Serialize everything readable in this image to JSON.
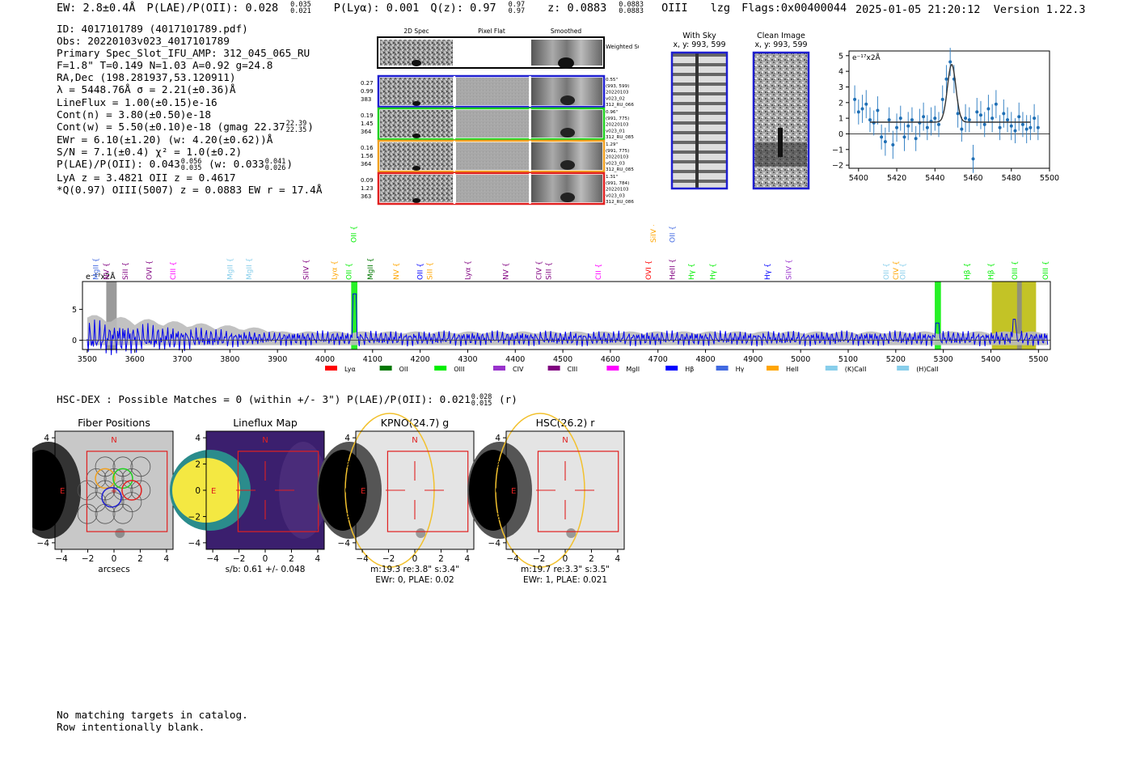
{
  "header": {
    "ew": "EW: 2.8±0.4Å",
    "plae_label": "P(LAE)/P(OII): 0.028",
    "plae_hi": "0.035",
    "plae_lo": "0.021",
    "plya": "P(Lyα): 0.001",
    "qz_label": "Q(z): 0.97",
    "qz_hi": "0.97",
    "qz_lo": "0.97",
    "z_label": "z: 0.0883",
    "z_hi": "0.0883",
    "z_lo": "0.0883",
    "line": "OIII",
    "method": "lzg",
    "flags": "Flags:0x00400044",
    "datetime": "2025-01-05 21:20:12",
    "version": "Version 1.22.3"
  },
  "info": {
    "id": "ID: 4017101789 (4017101789.pdf)",
    "obs": "Obs: 20220103v023_4017101789",
    "primary": "Primary Spec_Slot_IFU_AMP: 312_045_065_RU",
    "fit": "F=1.8\"  T=0.149  N=1.03  A=0.92  g=24.8",
    "radec": "RA,Dec (198.281937,53.120911)",
    "lambda": "λ = 5448.76Å   σ = 2.21(±0.36)Å",
    "lineflux": "LineFlux = 1.00(±0.15)e-16",
    "contn": "Cont(n) = 3.80(±0.50)e-18",
    "contw": "Cont(w) = 5.50(±0.10)e-18 (gmag 22.37",
    "contw_hi": "22.39",
    "contw_lo": "22.35",
    "contw_end": ")",
    "ewr": "EWr = 6.10(±1.20) (w: 4.20(±0.62))Å",
    "sn": "S/N = 7.1(±0.4)  χ² = 1.0(±0.2)",
    "plae": "P(LAE)/P(OII): 0.043",
    "plae_hi": "0.056",
    "plae_lo": "0.035",
    "plae_w": "(w: 0.033",
    "plae_w_hi": "0.041",
    "plae_w_lo": "0.026",
    "plae_w_end": ")",
    "lya": "LyA z = 3.4821   OII z = 0.4617",
    "q": "*Q(0.97) OIII(5007) z = 0.0883  EW r = 17.4Å"
  },
  "cutouts": {
    "col_headers": [
      "2D Spec",
      "Pixel Flat",
      "Smoothed"
    ],
    "weighted_label": "Weighted Sum",
    "rows": [
      {
        "color": "#1f1fd0",
        "left": [
          "0.27",
          "0.99",
          "383"
        ],
        "right": [
          "0.55\"",
          "(993, 599)",
          "20220103",
          "v023_02",
          "312_RU_066"
        ]
      },
      {
        "color": "#20d020",
        "left": [
          "0.19",
          "1.45",
          "364"
        ],
        "right": [
          "0.96\"",
          "(991, 775)",
          "20220103",
          "v023_01",
          "312_RU_085"
        ]
      },
      {
        "color": "#f0a020",
        "left": [
          "0.16",
          "1.56",
          "364"
        ],
        "right": [
          "1.29\"",
          "(991, 775)",
          "20220103",
          "v023_03",
          "312_RU_085"
        ]
      },
      {
        "color": "#e02020",
        "left": [
          "0.09",
          "1.23",
          "363"
        ],
        "right": [
          "1.31\"",
          "(991, 784)",
          "20220103",
          "v023_03",
          "312_RU_086"
        ]
      }
    ]
  },
  "sky": {
    "with_title": "With Sky",
    "with_sub": "x, y: 993, 599",
    "clean_title": "Clean Image",
    "clean_sub": "x, y: 993, 599"
  },
  "zoom_chart": {
    "ylabel": "e⁻¹⁷x2Å",
    "xticks": [
      "5400",
      "5420",
      "5440",
      "5460",
      "5480",
      "5500"
    ],
    "yticks": [
      "−2",
      "−1",
      "0",
      "1",
      "2",
      "3",
      "4",
      "5"
    ]
  },
  "chart_data": [
    {
      "type": "scatter",
      "xlim": [
        5395,
        5500
      ],
      "ylim": [
        -2.2,
        5.3
      ],
      "ylabel": "e⁻¹⁷x2Å",
      "points_x": [
        5398,
        5400,
        5402,
        5404,
        5406,
        5408,
        5410,
        5412,
        5414,
        5416,
        5418,
        5420,
        5422,
        5424,
        5426,
        5428,
        5430,
        5432,
        5434,
        5436,
        5438,
        5440,
        5442,
        5444,
        5446,
        5448,
        5450,
        5452,
        5454,
        5456,
        5458,
        5460,
        5462,
        5464,
        5466,
        5468,
        5470,
        5472,
        5474,
        5476,
        5478,
        5480,
        5482,
        5484,
        5486,
        5488,
        5490,
        5492,
        5494
      ],
      "points_y": [
        2.2,
        1.4,
        1.6,
        1.9,
        0.9,
        0.7,
        1.5,
        -0.2,
        -0.5,
        0.9,
        -0.7,
        0.4,
        1.0,
        -0.2,
        0.5,
        0.9,
        -0.3,
        0.7,
        1.1,
        0.4,
        0.8,
        1.0,
        0.6,
        2.2,
        3.5,
        4.6,
        3.5,
        1.3,
        0.3,
        1.0,
        0.9,
        -1.6,
        1.4,
        1.2,
        0.6,
        1.6,
        1.0,
        1.9,
        0.4,
        1.3,
        0.9,
        0.5,
        0.2,
        1.1,
        0.6,
        0.3,
        0.4,
        1.0,
        0.4
      ],
      "errors": [
        0.9,
        0.8,
        0.9,
        0.9,
        0.8,
        0.8,
        0.9,
        0.8,
        0.9,
        0.8,
        0.9,
        0.9,
        0.8,
        0.9,
        0.9,
        0.8,
        0.8,
        0.9,
        0.9,
        0.8,
        0.9,
        0.8,
        0.8,
        0.9,
        0.9,
        0.9,
        0.9,
        0.9,
        0.8,
        0.9,
        0.8,
        0.9,
        0.9,
        0.9,
        0.8,
        0.9,
        0.9,
        0.9,
        0.8,
        0.9,
        0.8,
        0.9,
        0.8,
        0.9,
        0.8,
        0.9,
        0.8,
        0.9,
        0.8
      ],
      "fit_continuum": 0.75,
      "fit_peak": 4.45,
      "fit_center": 5448.76,
      "fit_sigma": 2.21
    },
    {
      "type": "line",
      "xlim": [
        3490,
        5525
      ],
      "ylim": [
        -1.5,
        9.5
      ],
      "ylabel": "e⁻¹⁷x2Å",
      "xticks": [
        "3500",
        "3600",
        "3700",
        "3800",
        "3900",
        "4000",
        "4100",
        "4200",
        "4300",
        "4400",
        "4500",
        "4600",
        "4700",
        "4800",
        "4900",
        "5000",
        "5100",
        "5200",
        "5300",
        "5400",
        "5500"
      ],
      "yticks": [
        "0",
        "5"
      ],
      "legend": [
        {
          "name": "Lyα",
          "color": "#ff0000"
        },
        {
          "name": "OII",
          "color": "#007700"
        },
        {
          "name": "OIII",
          "color": "#00ee00"
        },
        {
          "name": "CIV",
          "color": "#9932cc"
        },
        {
          "name": "CIII",
          "color": "#800080"
        },
        {
          "name": "MgII",
          "color": "#ff00ff"
        },
        {
          "name": "Hβ",
          "color": "#0000ff"
        },
        {
          "name": "Hγ",
          "color": "#4169e1"
        },
        {
          "name": "HeII",
          "color": "#ffa500"
        },
        {
          "name": "(K)CaII",
          "color": "#87ceeb"
        },
        {
          "name": "(H)CaII",
          "color": "#87ceeb"
        }
      ],
      "line_labels_bottom": [
        {
          "x": 3518,
          "name": "MgII",
          "color": "#4169e1"
        },
        {
          "x": 3540,
          "name": "NV",
          "color": "#800080"
        },
        {
          "x": 3580,
          "name": "SiII",
          "color": "#800080"
        },
        {
          "x": 3630,
          "name": "OVI",
          "color": "#800080"
        },
        {
          "x": 3680,
          "name": "CIII",
          "color": "#ff00ff"
        },
        {
          "x": 3800,
          "name": "MgII",
          "color": "#87ceeb"
        },
        {
          "x": 3840,
          "name": "MgII",
          "color": "#87ceeb"
        },
        {
          "x": 3960,
          "name": "SiIV",
          "color": "#800080"
        },
        {
          "x": 4020,
          "name": "Lyα",
          "color": "#ffa500"
        },
        {
          "x": 4050,
          "name": "OII",
          "color": "#00ee00"
        },
        {
          "x": 4095,
          "name": "MgII",
          "color": "#007700"
        },
        {
          "x": 4150,
          "name": "NV",
          "color": "#ffa500"
        },
        {
          "x": 4200,
          "name": "OII",
          "color": "#0000ff"
        },
        {
          "x": 4220,
          "name": "SiII",
          "color": "#ffa500"
        },
        {
          "x": 4300,
          "name": "Lyα",
          "color": "#800080"
        },
        {
          "x": 4380,
          "name": "NV",
          "color": "#800080"
        },
        {
          "x": 4450,
          "name": "CIV",
          "color": "#800080"
        },
        {
          "x": 4470,
          "name": "SiII",
          "color": "#800080"
        },
        {
          "x": 4575,
          "name": "CII",
          "color": "#ff00ff"
        },
        {
          "x": 4680,
          "name": "OVI",
          "color": "#ff0000"
        },
        {
          "x": 4730,
          "name": "HeII",
          "color": "#800080"
        },
        {
          "x": 4770,
          "name": "Hγ",
          "color": "#00ee00"
        },
        {
          "x": 4815,
          "name": "Hγ",
          "color": "#00ee00"
        },
        {
          "x": 4930,
          "name": "Hγ",
          "color": "#0000ff"
        },
        {
          "x": 4975,
          "name": "SiIV",
          "color": "#9932cc"
        },
        {
          "x": 5180,
          "name": "OII",
          "color": "#87ceeb"
        },
        {
          "x": 5200,
          "name": "CIV",
          "color": "#ffa500"
        },
        {
          "x": 5215,
          "name": "OII",
          "color": "#87ceeb"
        },
        {
          "x": 5350,
          "name": "Hβ",
          "color": "#00ee00"
        },
        {
          "x": 5400,
          "name": "Hβ",
          "color": "#00ee00"
        },
        {
          "x": 5450,
          "name": "OIII",
          "color": "#00ee00"
        },
        {
          "x": 5515,
          "name": "OIII",
          "color": "#00ee00"
        }
      ],
      "line_labels_top": [
        {
          "x": 4060,
          "name": "OII",
          "color": "#00ee00"
        },
        {
          "x": 4690,
          "name": "SiIV",
          "color": "#ffa500"
        },
        {
          "x": 4730,
          "name": "OII",
          "color": "#4169e1"
        }
      ],
      "bands": [
        {
          "x0": 3540,
          "x1": 3562,
          "color": "#888888"
        },
        {
          "x0": 4055,
          "x1": 4068,
          "color": "#00ee00"
        },
        {
          "x0": 5282,
          "x1": 5295,
          "color": "#00ee00"
        },
        {
          "x0": 5402,
          "x1": 5495,
          "color": "#b8b800"
        },
        {
          "x0": 5455,
          "x1": 5465,
          "color": "#888888"
        }
      ]
    }
  ],
  "hsc": {
    "line": "HSC-DEX : Possible Matches = 0 (within +/- 3\")  P(LAE)/P(OII): 0.021",
    "hi": "0.028",
    "lo": "0.015",
    "end": " (r)"
  },
  "panels": [
    {
      "title": "Fiber Positions",
      "xlabel": "arcsecs",
      "cap1": "",
      "cap2": "",
      "kind": "fiber"
    },
    {
      "title": "Lineflux Map",
      "xlabel": "s/b: 0.61 +/- 0.048",
      "cap1": "",
      "cap2": "",
      "kind": "lineflux"
    },
    {
      "title": "KPNO(24.7) g",
      "xlabel": "m:19.3  re:3.8\"  s:3.4\"",
      "cap1": "EWr: 0, PLAE: 0.02",
      "cap2": "",
      "kind": "kpno"
    },
    {
      "title": "HSC(26.2) r",
      "xlabel": "m:19.7  re:3.3\"  s:3.5\"",
      "cap1": "EWr: 1, PLAE: 0.021",
      "cap2": "",
      "kind": "hsc"
    }
  ],
  "panel_ticks": {
    "x": [
      "−4",
      "−2",
      "0",
      "2",
      "4"
    ],
    "y": [
      "4",
      "2",
      "0",
      "−2",
      "−4"
    ],
    "north": "N",
    "east": "E"
  },
  "footer": {
    "line1": "No matching targets in catalog.",
    "line2": "Row intentionally blank."
  }
}
